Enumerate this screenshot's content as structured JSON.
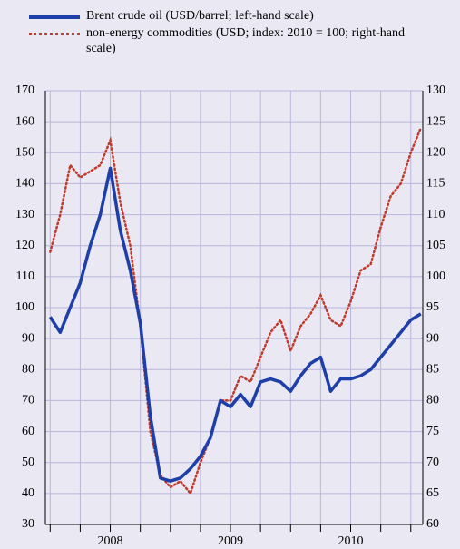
{
  "chart_data": {
    "type": "line",
    "x": [
      2008.0,
      2008.0833,
      2008.1667,
      2008.25,
      2008.3333,
      2008.4167,
      2008.5,
      2008.5833,
      2008.6667,
      2008.75,
      2008.8333,
      2008.9167,
      2009.0,
      2009.0833,
      2009.1667,
      2009.25,
      2009.3333,
      2009.4167,
      2009.5,
      2009.5833,
      2009.6667,
      2009.75,
      2009.8333,
      2009.9167,
      2010.0,
      2010.0833,
      2010.1667,
      2010.25,
      2010.3333,
      2010.4167,
      2010.5,
      2010.5833,
      2010.6667,
      2010.75,
      2010.8333,
      2010.9167,
      2011.0,
      2011.0833
    ],
    "series": [
      {
        "name": "Brent crude oil (USD/barrel; left-hand scale)",
        "color": "#1f3fa8",
        "axis": "y",
        "values": [
          97,
          92,
          100,
          108,
          120,
          130,
          145,
          125,
          112,
          95,
          65,
          45,
          44,
          45,
          48,
          52,
          58,
          70,
          68,
          72,
          68,
          76,
          77,
          76,
          73,
          78,
          82,
          84,
          73,
          77,
          77,
          78,
          80,
          84,
          88,
          92,
          96,
          98
        ]
      },
      {
        "name": "non-energy commodities (USD; index: 2010 = 100; right-hand scale)",
        "color": "#c0392b",
        "axis": "y2",
        "values": [
          104,
          110,
          118,
          116,
          117,
          118,
          122,
          112,
          105,
          92,
          75,
          68,
          66,
          67,
          65,
          70,
          74,
          80,
          80,
          84,
          83,
          87,
          91,
          93,
          88,
          92,
          94,
          97,
          93,
          92,
          96,
          101,
          102,
          108,
          113,
          115,
          120,
          124
        ]
      }
    ],
    "xlim": [
      2007.96,
      2011.1
    ],
    "xticks": [
      {
        "value": 2008.5,
        "label": "2008"
      },
      {
        "value": 2009.5,
        "label": "2009"
      },
      {
        "value": 2010.5,
        "label": "2010"
      }
    ],
    "minor_xticks": [
      2008,
      2008.25,
      2008.5,
      2008.75,
      2009,
      2009.25,
      2009.5,
      2009.75,
      2010,
      2010.25,
      2010.5,
      2010.75,
      2011
    ],
    "ylim": [
      30,
      170
    ],
    "yticks": [
      30,
      40,
      50,
      60,
      70,
      80,
      90,
      100,
      110,
      120,
      130,
      140,
      150,
      160,
      170
    ],
    "y2lim": [
      60,
      130
    ],
    "y2ticks": [
      60,
      65,
      70,
      75,
      80,
      85,
      90,
      95,
      100,
      105,
      110,
      115,
      120,
      125,
      130
    ],
    "grid": true
  }
}
